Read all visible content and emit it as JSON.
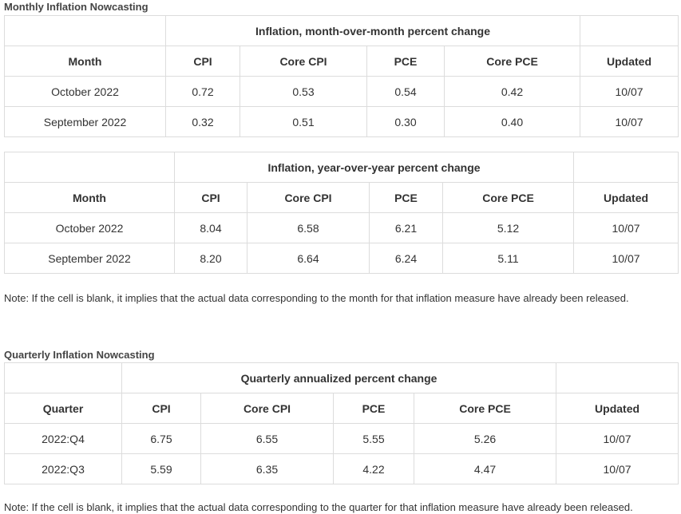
{
  "sections": [
    {
      "title": "Monthly Inflation Nowcasting",
      "tables": [
        {
          "group_header": "Inflation, month-over-month percent change",
          "columns": [
            "Month",
            "CPI",
            "Core CPI",
            "PCE",
            "Core PCE",
            "Updated"
          ],
          "rows": [
            [
              "October 2022",
              "0.72",
              "0.53",
              "0.54",
              "0.42",
              "10/07"
            ],
            [
              "September 2022",
              "0.32",
              "0.51",
              "0.30",
              "0.40",
              "10/07"
            ]
          ]
        },
        {
          "group_header": "Inflation, year-over-year percent change",
          "columns": [
            "Month",
            "CPI",
            "Core CPI",
            "PCE",
            "Core PCE",
            "Updated"
          ],
          "rows": [
            [
              "October 2022",
              "8.04",
              "6.58",
              "6.21",
              "5.12",
              "10/07"
            ],
            [
              "September 2022",
              "8.20",
              "6.64",
              "6.24",
              "5.11",
              "10/07"
            ]
          ]
        }
      ],
      "note": "Note: If the cell is blank, it implies that the actual data corresponding to the month for that inflation measure have already been released."
    },
    {
      "title": "Quarterly Inflation Nowcasting",
      "tables": [
        {
          "group_header": "Quarterly annualized percent change",
          "columns": [
            "Quarter",
            "CPI",
            "Core CPI",
            "PCE",
            "Core PCE",
            "Updated"
          ],
          "rows": [
            [
              "2022:Q4",
              "6.75",
              "6.55",
              "5.55",
              "5.26",
              "10/07"
            ],
            [
              "2022:Q3",
              "5.59",
              "6.35",
              "4.22",
              "4.47",
              "10/07"
            ]
          ]
        }
      ],
      "note": "Note: If the cell is blank, it implies that the actual data corresponding to the quarter for that inflation measure have already been released."
    }
  ]
}
